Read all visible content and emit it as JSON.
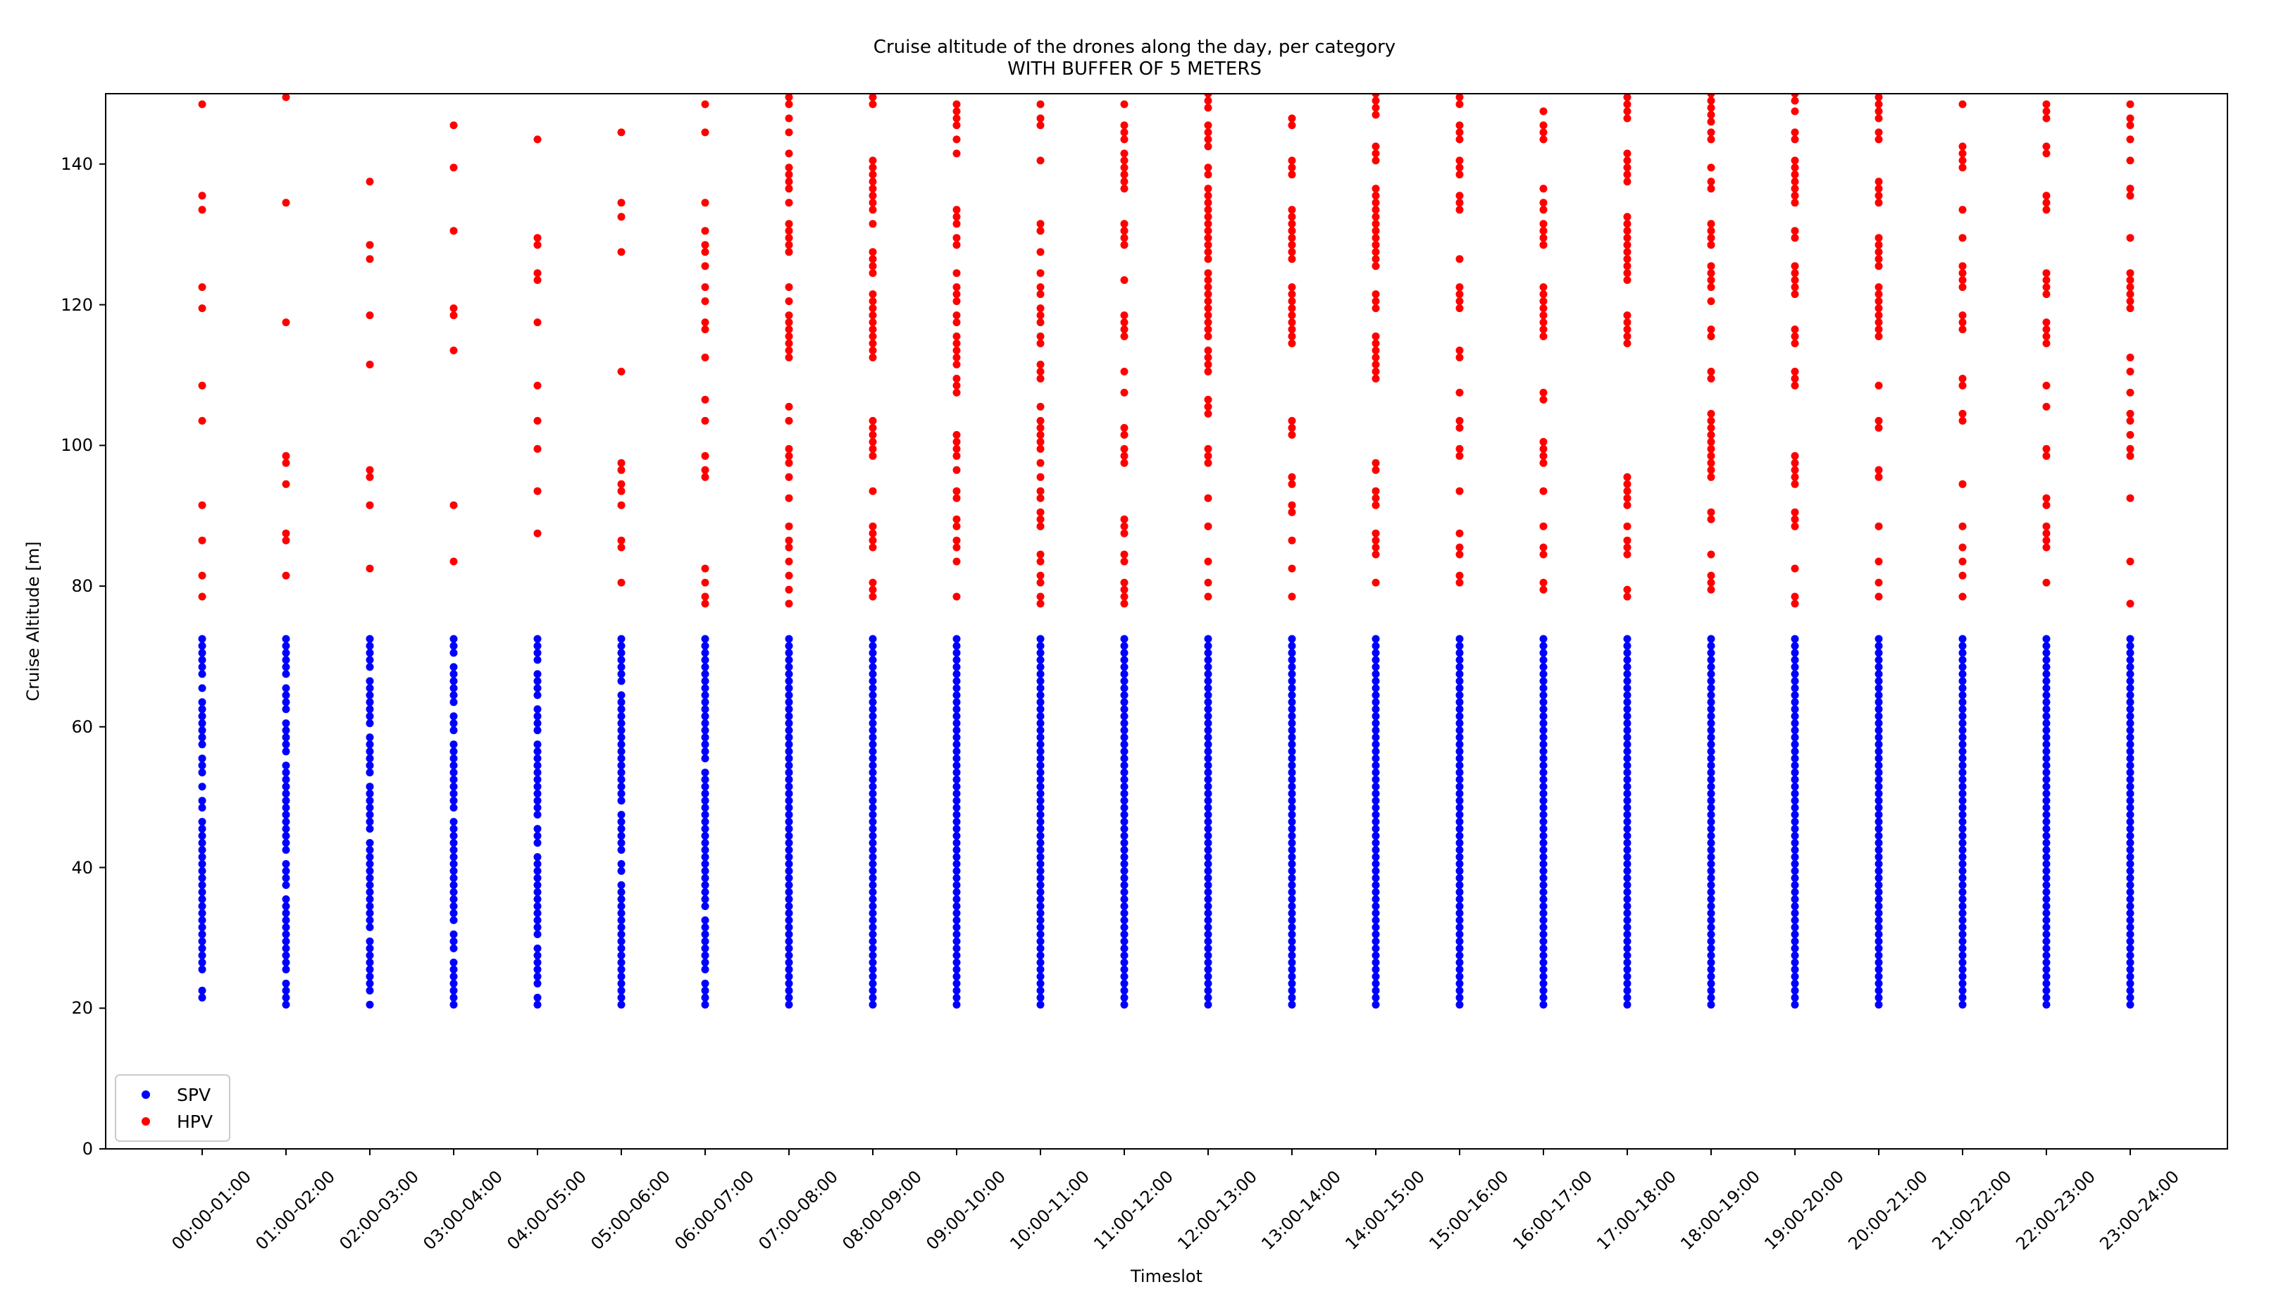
{
  "title": {
    "line1": "Cruise altitude of the drones along the day, per category",
    "line2": "WITH BUFFER OF 5 METERS"
  },
  "axes": {
    "xlabel": "Timeslot",
    "ylabel": "Cruise Altitude [m]"
  },
  "chart_data": {
    "type": "scatter",
    "title": "Cruise altitude of the drones along the day, per category\nWITH BUFFER OF 5 METERS",
    "xlabel": "Timeslot",
    "ylabel": "Cruise Altitude [m]",
    "ylim": [
      0,
      150
    ],
    "yticks": [
      0,
      20,
      40,
      60,
      80,
      100,
      120,
      140
    ],
    "grid": false,
    "legend_position": "lower left",
    "categories": [
      "00:00-01:00",
      "01:00-02:00",
      "02:00-03:00",
      "03:00-04:00",
      "04:00-05:00",
      "05:00-06:00",
      "06:00-07:00",
      "07:00-08:00",
      "08:00-09:00",
      "09:00-10:00",
      "10:00-11:00",
      "11:00-12:00",
      "12:00-13:00",
      "13:00-14:00",
      "14:00-15:00",
      "15:00-16:00",
      "16:00-17:00",
      "17:00-18:00",
      "18:00-19:00",
      "19:00-20:00",
      "20:00-21:00",
      "21:00-22:00",
      "22:00-23:00",
      "23:00-24:00"
    ],
    "series": [
      {
        "name": "SPV",
        "color": "#0000ff",
        "marker": "dot",
        "altitude_min": 20.5,
        "altitude_max": 72.5,
        "altitude_step": 1.0,
        "missing_altitudes_per_timeslot": [
          [
            20.5,
            23.5,
            24.5,
            47.5,
            50.5,
            52.5,
            56.5,
            64.5,
            66.5
          ],
          [
            24.5,
            36.5,
            41.5,
            55.5,
            61.5,
            66.5
          ],
          [
            21.5,
            30.5,
            44.5,
            52.5,
            59.5,
            67.5
          ],
          [
            27.5,
            31.5,
            47.5,
            58.5,
            62.5,
            69.5
          ],
          [
            22.5,
            29.5,
            42.5,
            46.5,
            58.5,
            63.5,
            68.5
          ],
          [
            38.5,
            41.5,
            48.5,
            65.5
          ],
          [
            24.5,
            33.5,
            54.5
          ],
          [],
          [],
          [],
          [],
          [],
          [],
          [],
          [],
          [],
          [],
          [],
          [],
          [],
          [],
          [],
          [],
          []
        ]
      },
      {
        "name": "HPV",
        "color": "#ff0000",
        "marker": "dot",
        "altitudes_per_timeslot": [
          [
            148.5,
            135.5,
            133.5,
            122.5,
            119.5,
            108.5,
            103.5,
            91.5,
            86.5,
            81.5,
            78.5
          ],
          [
            149.5,
            134.5,
            117.5,
            98.5,
            97.5,
            94.5,
            87.5,
            86.5,
            81.5
          ],
          [
            137.5,
            128.5,
            126.5,
            118.5,
            111.5,
            96.5,
            95.5,
            91.5,
            82.5
          ],
          [
            145.5,
            139.5,
            130.5,
            119.5,
            118.5,
            113.5,
            91.5,
            83.5
          ],
          [
            143.5,
            129.5,
            128.5,
            124.5,
            123.5,
            117.5,
            108.5,
            103.5,
            99.5,
            93.5,
            87.5
          ],
          [
            144.5,
            134.5,
            132.5,
            127.5,
            110.5,
            97.5,
            96.5,
            94.5,
            93.5,
            91.5,
            86.5,
            85.5,
            80.5
          ],
          [
            148.5,
            144.5,
            134.5,
            130.5,
            128.5,
            127.5,
            125.5,
            122.5,
            120.5,
            117.5,
            116.5,
            112.5,
            106.5,
            103.5,
            98.5,
            96.5,
            95.5,
            82.5,
            80.5,
            78.5,
            77.5
          ],
          [
            149.5,
            148.5,
            146.5,
            144.5,
            141.5,
            139.5,
            138.5,
            137.5,
            136.5,
            134.5,
            131.5,
            130.5,
            129.5,
            128.5,
            127.5,
            122.5,
            120.5,
            118.5,
            117.5,
            116.5,
            115.5,
            114.5,
            113.5,
            112.5,
            105.5,
            103.5,
            99.5,
            98.5,
            97.5,
            95.5,
            92.5,
            88.5,
            86.5,
            85.5,
            83.5,
            81.5,
            79.5,
            77.5
          ],
          [
            149.5,
            148.5,
            140.5,
            139.5,
            138.5,
            137.5,
            136.5,
            135.5,
            134.5,
            133.5,
            131.5,
            127.5,
            126.5,
            125.5,
            124.5,
            121.5,
            120.5,
            119.5,
            118.5,
            117.5,
            116.5,
            115.5,
            114.5,
            113.5,
            112.5,
            103.5,
            102.5,
            101.5,
            100.5,
            99.5,
            98.5,
            93.5,
            88.5,
            87.5,
            86.5,
            85.5,
            80.5,
            79.5,
            78.5
          ],
          [
            148.5,
            147.5,
            146.5,
            145.5,
            143.5,
            141.5,
            133.5,
            132.5,
            131.5,
            129.5,
            128.5,
            124.5,
            122.5,
            121.5,
            120.5,
            118.5,
            117.5,
            115.5,
            114.5,
            113.5,
            112.5,
            111.5,
            109.5,
            108.5,
            107.5,
            101.5,
            100.5,
            99.5,
            98.5,
            96.5,
            93.5,
            92.5,
            89.5,
            88.5,
            86.5,
            85.5,
            83.5,
            78.5
          ],
          [
            148.5,
            146.5,
            145.5,
            140.5,
            131.5,
            130.5,
            127.5,
            124.5,
            122.5,
            121.5,
            119.5,
            118.5,
            117.5,
            115.5,
            114.5,
            111.5,
            110.5,
            109.5,
            105.5,
            103.5,
            102.5,
            101.5,
            100.5,
            99.5,
            97.5,
            95.5,
            93.5,
            92.5,
            90.5,
            89.5,
            88.5,
            84.5,
            83.5,
            81.5,
            80.5,
            78.5,
            77.5
          ],
          [
            148.5,
            145.5,
            144.5,
            143.5,
            141.5,
            140.5,
            139.5,
            138.5,
            137.5,
            136.5,
            131.5,
            130.5,
            129.5,
            128.5,
            123.5,
            118.5,
            117.5,
            116.5,
            115.5,
            110.5,
            107.5,
            102.5,
            101.5,
            99.5,
            98.5,
            97.5,
            89.5,
            88.5,
            87.5,
            84.5,
            83.5,
            80.5,
            79.5,
            78.5,
            77.5
          ],
          [
            150,
            149,
            148,
            145.5,
            144.5,
            143.5,
            142.5,
            139.5,
            138.5,
            136.5,
            135.5,
            134.5,
            133.5,
            132.5,
            131.5,
            130.5,
            129.5,
            128.5,
            127.5,
            126.5,
            124.5,
            123.5,
            122.5,
            121.5,
            120.5,
            119.5,
            118.5,
            117.5,
            116.5,
            115.5,
            113.5,
            112.5,
            111.5,
            110.5,
            106.5,
            105.5,
            104.5,
            99.5,
            98.5,
            97.5,
            92.5,
            88.5,
            83.5,
            80.5,
            78.5
          ],
          [
            146.5,
            145.5,
            140.5,
            139.5,
            138.5,
            133.5,
            132.5,
            131.5,
            130.5,
            129.5,
            128.5,
            127.5,
            126.5,
            122.5,
            121.5,
            120.5,
            119.5,
            118.5,
            117.5,
            116.5,
            115.5,
            114.5,
            103.5,
            102.5,
            101.5,
            95.5,
            94.5,
            91.5,
            90.5,
            86.5,
            82.5,
            78.5
          ],
          [
            150,
            149,
            148,
            147,
            142.5,
            141.5,
            140.5,
            136.5,
            135.5,
            134.5,
            133.5,
            132.5,
            131.5,
            130.5,
            129.5,
            128.5,
            127.5,
            126.5,
            125.5,
            121.5,
            120.5,
            119.5,
            115.5,
            114.5,
            113.5,
            112.5,
            111.5,
            110.5,
            109.5,
            97.5,
            96.5,
            93.5,
            92.5,
            91.5,
            87.5,
            86.5,
            85.5,
            84.5,
            80.5
          ],
          [
            149.5,
            148.5,
            145.5,
            144.5,
            143.5,
            140.5,
            139.5,
            138.5,
            135.5,
            134.5,
            133.5,
            126.5,
            122.5,
            121.5,
            120.5,
            119.5,
            113.5,
            112.5,
            107.5,
            103.5,
            102.5,
            99.5,
            98.5,
            93.5,
            87.5,
            85.5,
            84.5,
            81.5,
            80.5
          ],
          [
            147.5,
            145.5,
            144.5,
            143.5,
            136.5,
            134.5,
            133.5,
            131.5,
            130.5,
            129.5,
            128.5,
            122.5,
            121.5,
            120.5,
            119.5,
            118.5,
            117.5,
            116.5,
            115.5,
            107.5,
            106.5,
            100.5,
            99.5,
            98.5,
            97.5,
            93.5,
            88.5,
            85.5,
            84.5,
            80.5,
            79.5
          ],
          [
            149.5,
            148.5,
            147.5,
            146.5,
            141.5,
            140.5,
            139.5,
            138.5,
            137.5,
            132.5,
            131.5,
            130.5,
            129.5,
            128.5,
            127.5,
            126.5,
            125.5,
            124.5,
            123.5,
            118.5,
            117.5,
            116.5,
            115.5,
            114.5,
            95.5,
            94.5,
            93.5,
            92.5,
            91.5,
            88.5,
            86.5,
            85.5,
            84.5,
            79.5,
            78.5
          ],
          [
            150,
            149,
            148,
            147,
            146,
            144.5,
            143.5,
            139.5,
            137.5,
            136.5,
            131.5,
            130.5,
            129.5,
            128.5,
            125.5,
            124.5,
            123.5,
            122.5,
            120.5,
            116.5,
            115.5,
            110.5,
            109.5,
            104.5,
            103.5,
            102.5,
            101.5,
            100.5,
            99.5,
            98.5,
            97.5,
            96.5,
            95.5,
            90.5,
            89.5,
            84.5,
            81.5,
            80.5,
            79.5
          ],
          [
            150,
            149,
            147.5,
            144.5,
            143.5,
            140.5,
            139.5,
            138.5,
            137.5,
            136.5,
            135.5,
            134.5,
            130.5,
            129.5,
            125.5,
            124.5,
            123.5,
            122.5,
            121.5,
            116.5,
            115.5,
            114.5,
            110.5,
            109.5,
            108.5,
            98.5,
            97.5,
            96.5,
            95.5,
            94.5,
            90.5,
            89.5,
            88.5,
            82.5,
            78.5,
            77.5
          ],
          [
            149.5,
            148.5,
            147.5,
            146.5,
            144.5,
            143.5,
            137.5,
            136.5,
            135.5,
            134.5,
            129.5,
            128.5,
            127.5,
            126.5,
            125.5,
            122.5,
            121.5,
            120.5,
            119.5,
            118.5,
            117.5,
            116.5,
            115.5,
            108.5,
            103.5,
            102.5,
            96.5,
            95.5,
            88.5,
            83.5,
            80.5,
            78.5
          ],
          [
            148.5,
            142.5,
            141.5,
            140.5,
            139.5,
            133.5,
            129.5,
            125.5,
            124.5,
            123.5,
            122.5,
            118.5,
            117.5,
            116.5,
            109.5,
            108.5,
            104.5,
            103.5,
            94.5,
            88.5,
            85.5,
            83.5,
            81.5,
            78.5
          ],
          [
            148.5,
            147.5,
            146.5,
            142.5,
            141.5,
            135.5,
            134.5,
            133.5,
            124.5,
            123.5,
            122.5,
            121.5,
            117.5,
            116.5,
            115.5,
            114.5,
            108.5,
            105.5,
            99.5,
            98.5,
            92.5,
            91.5,
            88.5,
            87.5,
            86.5,
            85.5,
            80.5
          ],
          [
            148.5,
            146.5,
            145.5,
            143.5,
            140.5,
            136.5,
            135.5,
            129.5,
            124.5,
            123.5,
            122.5,
            121.5,
            120.5,
            119.5,
            112.5,
            110.5,
            107.5,
            104.5,
            103.5,
            101.5,
            99.5,
            98.5,
            92.5,
            83.5,
            77.5
          ]
        ]
      }
    ]
  }
}
